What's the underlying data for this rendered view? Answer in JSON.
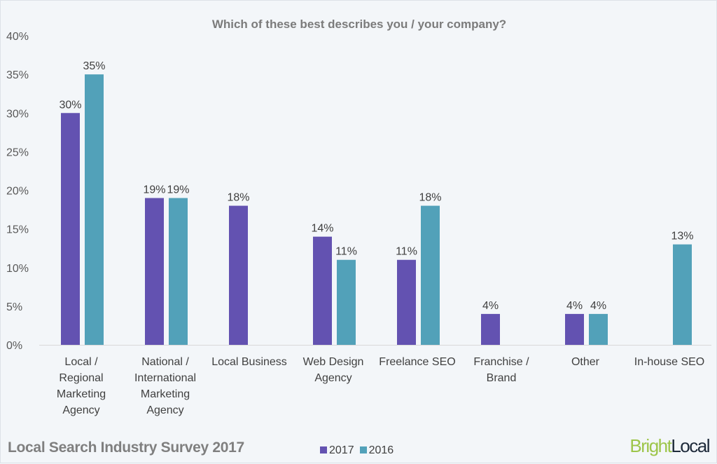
{
  "chart_data": {
    "type": "bar",
    "title": "Which of these best describes you / your company?",
    "categories": [
      "Local /\nRegional\nMarketing\nAgency",
      "National /\nInternational\nMarketing\nAgency",
      "Local Business",
      "Web Design\nAgency",
      "Freelance SEO",
      "Franchise /\nBrand",
      "Other",
      "In-house SEO"
    ],
    "series": [
      {
        "name": "2017",
        "color": "#6352b1",
        "values": [
          30,
          19,
          18,
          14,
          11,
          4,
          4,
          null
        ]
      },
      {
        "name": "2016",
        "color": "#52a1b9",
        "values": [
          35,
          19,
          null,
          11,
          18,
          null,
          4,
          13
        ]
      }
    ],
    "ylim": [
      0,
      40
    ],
    "yticks": [
      "0%",
      "5%",
      "10%",
      "15%",
      "20%",
      "25%",
      "30%",
      "35%",
      "40%"
    ],
    "grid": false,
    "legend": "bottom"
  },
  "footer": {
    "survey": "Local Search Industry Survey 2017",
    "logo_part1": "Bright",
    "logo_part2": "Local"
  }
}
